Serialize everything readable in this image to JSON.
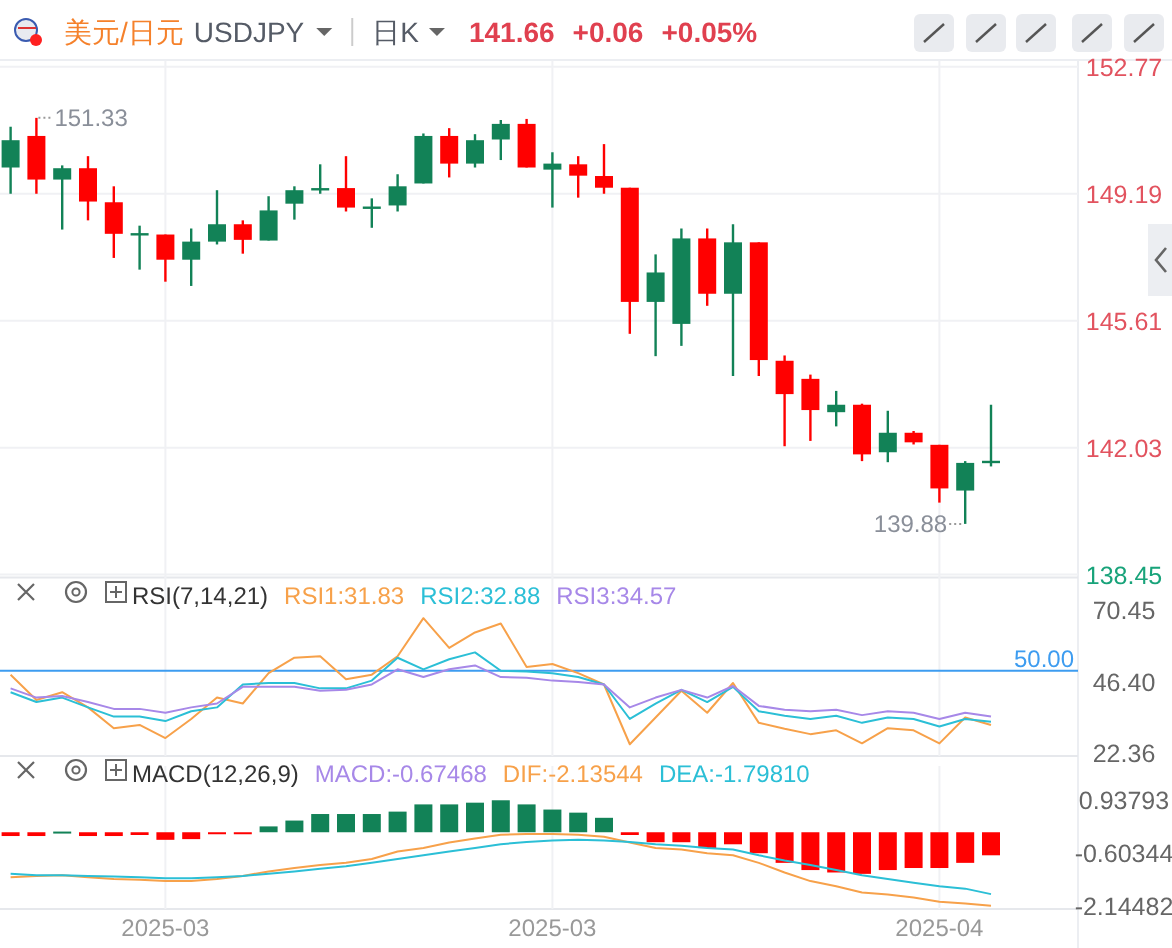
{
  "chart_data": [
    {
      "type": "candlestick",
      "title": "美元/日元",
      "subtitle": "USDJPY",
      "annotations": [
        "日K",
        "141.66",
        "+0.06",
        "+0.05%",
        "151.33",
        "139.88"
      ],
      "categories": [
        null,
        null,
        null,
        null,
        null,
        null,
        "2025-03",
        null,
        null,
        null,
        null,
        null,
        null,
        null,
        null,
        null,
        null,
        null,
        null,
        null,
        null,
        "2025-03",
        null,
        null,
        null,
        null,
        null,
        null,
        null,
        null,
        null,
        null,
        null,
        null,
        null,
        null,
        "2025-04",
        null,
        null
      ],
      "ohlc": [
        [
          149.93,
          151.08,
          149.19,
          150.7
        ],
        [
          150.82,
          151.33,
          149.19,
          149.59
        ],
        [
          149.59,
          149.99,
          148.18,
          149.91
        ],
        [
          149.91,
          150.25,
          148.44,
          148.97
        ],
        [
          148.95,
          149.4,
          147.38,
          148.06
        ],
        [
          148.05,
          148.29,
          147.05,
          148.08
        ],
        [
          148.04,
          148.04,
          146.71,
          147.33
        ],
        [
          147.33,
          148.21,
          146.59,
          147.84
        ],
        [
          147.84,
          149.29,
          147.76,
          148.33
        ],
        [
          148.33,
          148.44,
          147.5,
          147.89
        ],
        [
          147.87,
          149.12,
          147.87,
          148.72
        ],
        [
          148.91,
          149.4,
          148.46,
          149.29
        ],
        [
          149.33,
          150.02,
          149.19,
          149.35
        ],
        [
          149.35,
          150.25,
          148.69,
          148.8
        ],
        [
          148.8,
          149.06,
          148.23,
          148.83
        ],
        [
          148.86,
          149.74,
          148.69,
          149.4
        ],
        [
          149.48,
          150.89,
          149.48,
          150.82
        ],
        [
          150.82,
          151.04,
          149.65,
          150.04
        ],
        [
          150.04,
          150.87,
          149.93,
          150.7
        ],
        [
          150.72,
          151.27,
          150.14,
          151.16
        ],
        [
          151.16,
          151.3,
          149.93,
          149.93
        ],
        [
          149.87,
          150.36,
          148.8,
          150.04
        ],
        [
          150.02,
          150.25,
          149.08,
          149.7
        ],
        [
          149.69,
          150.59,
          149.19,
          149.36
        ],
        [
          149.36,
          149.36,
          145.24,
          146.14
        ],
        [
          146.14,
          147.48,
          144.61,
          146.97
        ],
        [
          145.52,
          148.21,
          144.9,
          147.93
        ],
        [
          147.93,
          148.21,
          146.03,
          146.37
        ],
        [
          146.37,
          148.33,
          144.05,
          147.82
        ],
        [
          147.82,
          147.82,
          144.05,
          144.5
        ],
        [
          144.48,
          144.63,
          142.07,
          143.54
        ],
        [
          143.97,
          144.09,
          142.22,
          143.09
        ],
        [
          143.03,
          143.63,
          142.63,
          143.24
        ],
        [
          143.24,
          143.27,
          141.65,
          141.84
        ],
        [
          141.9,
          143.07,
          141.62,
          142.45
        ],
        [
          142.45,
          142.5,
          142.12,
          142.18
        ],
        [
          142.11,
          142.11,
          140.48,
          140.88
        ],
        [
          140.82,
          141.65,
          139.88,
          141.6
        ],
        [
          141.6,
          143.24,
          141.5,
          141.66
        ]
      ],
      "colors": [
        "#128257",
        "#ff0000",
        "#128257",
        "#ff0000",
        "#ff0000",
        "#128257",
        "#ff0000",
        "#128257",
        "#128257",
        "#ff0000",
        "#128257",
        "#128257",
        "#128257",
        "#ff0000",
        "#128257",
        "#128257",
        "#128257",
        "#ff0000",
        "#128257",
        "#128257",
        "#ff0000",
        "#128257",
        "#ff0000",
        "#ff0000",
        "#ff0000",
        "#128257",
        "#128257",
        "#ff0000",
        "#128257",
        "#ff0000",
        "#ff0000",
        "#ff0000",
        "#128257",
        "#ff0000",
        "#128257",
        "#ff0000",
        "#ff0000",
        "#128257",
        "#128257"
      ],
      "ylim": [
        138.45,
        152.77
      ],
      "yticks": [
        152.77,
        149.19,
        145.61,
        142.03,
        138.45
      ],
      "grid": true,
      "tick_labels": "y"
    },
    {
      "type": "line",
      "title": "RSI(7,14,21)",
      "categories": [
        null,
        null,
        null,
        null,
        null,
        null,
        "2025-03",
        null,
        null,
        null,
        null,
        null,
        null,
        null,
        null,
        null,
        null,
        null,
        null,
        null,
        null,
        "2025-03",
        null,
        null,
        null,
        null,
        null,
        null,
        null,
        null,
        null,
        null,
        null,
        null,
        null,
        null,
        "2025-04",
        null,
        null
      ],
      "series": [
        {
          "name": "RSI1:31.83",
          "color": "#f7a14a",
          "values": [
            48.7,
            40.2,
            42.8,
            37.7,
            30.7,
            31.8,
            27.4,
            33.8,
            41.0,
            39.0,
            49.2,
            54.4,
            54.9,
            47.2,
            48.7,
            54.9,
            67.7,
            57.7,
            62.9,
            65.9,
            51.3,
            52.3,
            49.2,
            45.4,
            25.3,
            34.3,
            43.3,
            35.9,
            45.9,
            32.5,
            30.5,
            28.7,
            30.0,
            25.6,
            30.7,
            30.0,
            25.6,
            34.3,
            31.8
          ]
        },
        {
          "name": "RSI2:32.88",
          "color": "#2bbfd6",
          "values": [
            42.8,
            39.5,
            41.0,
            37.7,
            34.6,
            34.6,
            33.1,
            36.4,
            37.7,
            45.4,
            45.9,
            45.9,
            44.1,
            44.1,
            46.7,
            54.4,
            50.5,
            53.9,
            56.2,
            50.0,
            49.8,
            49.2,
            47.9,
            45.4,
            33.8,
            39.0,
            43.6,
            39.5,
            44.6,
            36.4,
            34.9,
            33.8,
            34.9,
            32.5,
            34.3,
            33.8,
            31.3,
            33.8,
            32.9
          ]
        },
        {
          "name": "RSI3:34.57",
          "color": "#a788e8",
          "values": [
            44.1,
            41.0,
            41.5,
            39.5,
            37.2,
            37.2,
            35.9,
            37.7,
            39.0,
            44.6,
            44.6,
            44.6,
            43.3,
            43.6,
            45.4,
            50.5,
            47.9,
            50.5,
            51.8,
            47.9,
            47.7,
            46.7,
            46.2,
            45.4,
            37.7,
            41.0,
            43.6,
            41.0,
            44.9,
            38.2,
            36.9,
            36.4,
            36.9,
            35.1,
            36.4,
            35.9,
            33.8,
            35.9,
            34.6
          ]
        }
      ],
      "ylim": [
        22.36,
        70.45
      ],
      "yticks": [
        70.45,
        {
          "value": 46.4,
          "label": "46.40"
        },
        22.36
      ],
      "ref_lines": [
        {
          "axis": "y",
          "value": 50,
          "label": "50.00",
          "color": "#3d9cf0"
        }
      ],
      "grid": "x",
      "legend": "top",
      "tick_labels": "y",
      "marker": "none",
      "line_style": "solid"
    },
    {
      "type": "bar",
      "title": "MACD(12,26,9)",
      "categories": [
        null,
        null,
        null,
        null,
        null,
        null,
        "2025-03",
        null,
        null,
        null,
        null,
        null,
        null,
        null,
        null,
        null,
        null,
        null,
        null,
        null,
        null,
        "2025-03",
        null,
        null,
        null,
        null,
        null,
        null,
        null,
        null,
        null,
        null,
        null,
        null,
        null,
        null,
        "2025-04",
        null,
        null
      ],
      "series": [
        {
          "name": "MACD:-0.67468",
          "type": "bar",
          "values": [
            -0.11,
            -0.11,
            0.02,
            -0.11,
            -0.11,
            -0.08,
            -0.22,
            -0.2,
            -0.04,
            -0.03,
            0.17,
            0.34,
            0.53,
            0.53,
            0.53,
            0.6,
            0.81,
            0.81,
            0.86,
            0.93,
            0.81,
            0.66,
            0.57,
            0.42,
            -0.08,
            -0.29,
            -0.29,
            -0.46,
            -0.35,
            -0.61,
            -0.89,
            -1.1,
            -1.17,
            -1.21,
            -1.1,
            -1.04,
            -1.04,
            -0.89,
            -0.67
          ],
          "colors": [
            "#ff0000",
            "#ff0000",
            "#128257",
            "#ff0000",
            "#ff0000",
            "#ff0000",
            "#ff0000",
            "#ff0000",
            "#ff0000",
            "#ff0000",
            "#128257",
            "#128257",
            "#128257",
            "#128257",
            "#128257",
            "#128257",
            "#128257",
            "#128257",
            "#128257",
            "#128257",
            "#128257",
            "#128257",
            "#128257",
            "#128257",
            "#ff0000",
            "#ff0000",
            "#ff0000",
            "#ff0000",
            "#ff0000",
            "#ff0000",
            "#ff0000",
            "#ff0000",
            "#ff0000",
            "#ff0000",
            "#ff0000",
            "#ff0000",
            "#ff0000",
            "#ff0000",
            "#ff0000"
          ]
        },
        {
          "name": "DIF:-2.13544",
          "type": "line",
          "color": "#f7a14a",
          "values": [
            -1.31,
            -1.27,
            -1.25,
            -1.31,
            -1.36,
            -1.38,
            -1.42,
            -1.42,
            -1.36,
            -1.27,
            -1.14,
            -1.04,
            -0.95,
            -0.89,
            -0.78,
            -0.56,
            -0.46,
            -0.3,
            -0.18,
            -0.07,
            -0.05,
            -0.05,
            -0.07,
            -0.13,
            -0.3,
            -0.46,
            -0.5,
            -0.61,
            -0.67,
            -0.89,
            -1.17,
            -1.42,
            -1.57,
            -1.75,
            -1.81,
            -1.9,
            -2.02,
            -2.07,
            -2.14
          ]
        },
        {
          "name": "DEA:-1.79810",
          "type": "line",
          "color": "#2bbfd6",
          "values": [
            -1.21,
            -1.25,
            -1.25,
            -1.27,
            -1.29,
            -1.31,
            -1.34,
            -1.34,
            -1.31,
            -1.27,
            -1.21,
            -1.14,
            -1.06,
            -0.99,
            -0.89,
            -0.78,
            -0.67,
            -0.56,
            -0.46,
            -0.35,
            -0.28,
            -0.24,
            -0.22,
            -0.24,
            -0.28,
            -0.35,
            -0.39,
            -0.46,
            -0.5,
            -0.67,
            -0.82,
            -0.95,
            -1.1,
            -1.25,
            -1.36,
            -1.47,
            -1.57,
            -1.64,
            -1.8
          ]
        }
      ],
      "ylim": [
        -2.14482,
        0.93793
      ],
      "yticks": [
        0.93793,
        -0.60344,
        -2.14482
      ],
      "grid": "x",
      "legend": "top"
    }
  ]
}
